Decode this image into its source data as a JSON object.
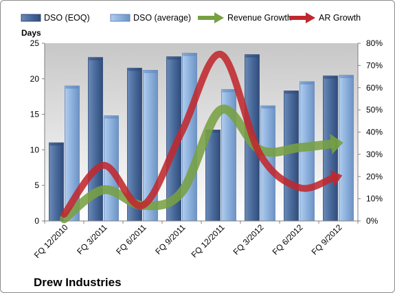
{
  "chart_data": {
    "type": "bar",
    "categories": [
      "FQ 12/2010",
      "FQ 3/2011",
      "FQ 6/2011",
      "FQ 9/2011",
      "FQ 12/2011",
      "FQ 3/2012",
      "FQ 6/2012",
      "FQ 9/2012"
    ],
    "bar_series": [
      {
        "name": "DSO (EOQ)",
        "values": [
          11.0,
          23.0,
          21.5,
          23.1,
          12.8,
          23.4,
          18.3,
          20.4
        ],
        "color": "#4a6a9b"
      },
      {
        "name": "DSO (average)",
        "values": [
          19.0,
          14.8,
          21.2,
          23.6,
          18.5,
          16.2,
          19.6,
          20.5
        ],
        "color": "#8cb0dc"
      }
    ],
    "line_series": [
      {
        "name": "Revenue Growth",
        "axis": "right",
        "values": [
          1.0,
          14.0,
          7.0,
          13.0,
          50.0,
          32.0,
          33.0,
          35.0
        ],
        "color": "#77a043"
      },
      {
        "name": "AR Growth",
        "axis": "right",
        "values": [
          3.0,
          25.0,
          7.0,
          40.0,
          75.0,
          30.0,
          15.0,
          20.0
        ],
        "color": "#c0282d"
      }
    ],
    "left_axis": {
      "title": "Days",
      "ylim": [
        0,
        25
      ],
      "ticks": [
        "0",
        "5",
        "10",
        "15",
        "20",
        "25"
      ]
    },
    "right_axis": {
      "ylim": [
        0,
        80
      ],
      "ticks": [
        "0%",
        "10%",
        "20%",
        "30%",
        "40%",
        "50%",
        "60%",
        "70%",
        "80%"
      ]
    },
    "title": "Drew Industries",
    "legend_position": "top",
    "grid": false
  }
}
